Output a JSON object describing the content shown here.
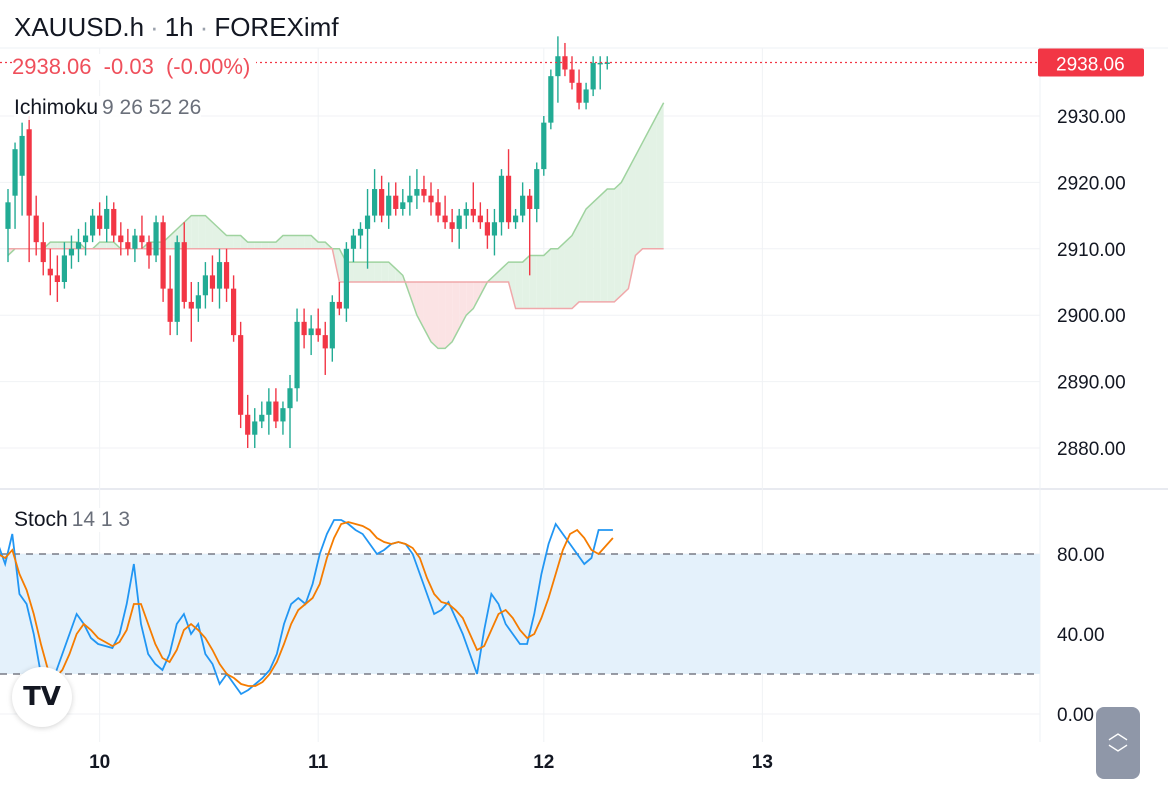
{
  "header": {
    "symbol": "XAUUSD.h",
    "interval": "1h",
    "broker": "FOREXimf",
    "last_price": "2938.06",
    "change": "-0.03",
    "change_pct": "(-0.00%)"
  },
  "ichimoku": {
    "label": "Ichimoku",
    "params": "9 26 52 26"
  },
  "stoch": {
    "label": "Stoch",
    "params": "14 1 3"
  },
  "colors": {
    "up": "#22ab94",
    "down": "#f23645",
    "price_line": "#f23645",
    "k_line": "#2196f3",
    "d_line": "#f57c00",
    "cloud_bull": "#e3f2e5",
    "cloud_bear": "#fbe3e4",
    "span_a": "#9fd39f",
    "span_b": "#f0a8aa",
    "band_fill": "#e4f1fb"
  },
  "icons": {
    "logo": "tradingview-logo-icon",
    "scroll": "chevron-up-down-icon"
  },
  "chart_data": [
    {
      "type": "candlestick",
      "title": "XAUUSD.h · 1h · FOREXimf",
      "ylim": [
        2874,
        2944
      ],
      "y_ticks": [
        "2930.00",
        "2920.00",
        "2910.00",
        "2900.00",
        "2890.00",
        "2880.00"
      ],
      "y_tick_values": [
        2930,
        2920,
        2910,
        2900,
        2890,
        2880
      ],
      "x_tick_labels": [
        "10",
        "11",
        "12",
        "13"
      ],
      "x_tick_index": [
        13,
        44,
        76,
        107
      ],
      "last_price_label": "2938.06",
      "last_price": 2938.06,
      "candles": [
        [
          2913,
          2919,
          2908,
          2917
        ],
        [
          2918,
          2926,
          2913,
          2925
        ],
        [
          2921,
          2929,
          2915,
          2927
        ],
        [
          2928,
          2930,
          2908,
          2915
        ],
        [
          2915,
          2918,
          2909,
          2911
        ],
        [
          2911,
          2914,
          2906,
          2908
        ],
        [
          2907,
          2910,
          2903,
          2906
        ],
        [
          2906,
          2909,
          2902,
          2905
        ],
        [
          2905,
          2911,
          2904,
          2909
        ],
        [
          2909,
          2912,
          2907,
          2910
        ],
        [
          2910,
          2913,
          2908,
          2911
        ],
        [
          2911,
          2914,
          2909,
          2912
        ],
        [
          2912,
          2916,
          2911,
          2915
        ],
        [
          2915,
          2917,
          2912,
          2913
        ],
        [
          2913,
          2918,
          2911,
          2916
        ],
        [
          2916,
          2917,
          2911,
          2912
        ],
        [
          2912,
          2914,
          2909,
          2911
        ],
        [
          2911,
          2913,
          2909,
          2910
        ],
        [
          2910,
          2913,
          2908,
          2912
        ],
        [
          2912,
          2915,
          2910,
          2911
        ],
        [
          2911,
          2912,
          2907,
          2909
        ],
        [
          2909,
          2915,
          2908,
          2914
        ],
        [
          2914,
          2915,
          2902,
          2904
        ],
        [
          2904,
          2909,
          2897,
          2899
        ],
        [
          2899,
          2912,
          2897,
          2911
        ],
        [
          2911,
          2914,
          2901,
          2902
        ],
        [
          2902,
          2905,
          2896,
          2901
        ],
        [
          2901,
          2905,
          2899,
          2903
        ],
        [
          2903,
          2908,
          2901,
          2906
        ],
        [
          2906,
          2909,
          2902,
          2904
        ],
        [
          2904,
          2910,
          2901,
          2908
        ],
        [
          2908,
          2910,
          2902,
          2904
        ],
        [
          2904,
          2906,
          2896,
          2897
        ],
        [
          2897,
          2899,
          2883,
          2885
        ],
        [
          2885,
          2888,
          2880,
          2882
        ],
        [
          2882,
          2886,
          2880,
          2884
        ],
        [
          2884,
          2887,
          2883,
          2885
        ],
        [
          2885,
          2889,
          2882,
          2887
        ],
        [
          2887,
          2889,
          2883,
          2884
        ],
        [
          2884,
          2887,
          2882,
          2886
        ],
        [
          2886,
          2891,
          2880,
          2889
        ],
        [
          2889,
          2901,
          2887,
          2899
        ],
        [
          2899,
          2901,
          2895,
          2897
        ],
        [
          2897,
          2900,
          2894,
          2898
        ],
        [
          2898,
          2901,
          2896,
          2897
        ],
        [
          2897,
          2899,
          2891,
          2895
        ],
        [
          2895,
          2903,
          2893,
          2902
        ],
        [
          2902,
          2905,
          2900,
          2901
        ],
        [
          2901,
          2911,
          2899,
          2910
        ],
        [
          2910,
          2913,
          2908,
          2912
        ],
        [
          2912,
          2914,
          2910,
          2913
        ],
        [
          2913,
          2919,
          2907,
          2915
        ],
        [
          2915,
          2922,
          2914,
          2919
        ],
        [
          2919,
          2921,
          2914,
          2915
        ],
        [
          2915,
          2920,
          2913,
          2918
        ],
        [
          2918,
          2920,
          2915,
          2916
        ],
        [
          2916,
          2919,
          2915,
          2917
        ],
        [
          2917,
          2921,
          2915,
          2918
        ],
        [
          2918,
          2922,
          2916,
          2919
        ],
        [
          2919,
          2921,
          2917,
          2918
        ],
        [
          2918,
          2920,
          2915,
          2917
        ],
        [
          2917,
          2919,
          2914,
          2915
        ],
        [
          2915,
          2918,
          2913,
          2914
        ],
        [
          2914,
          2916,
          2911,
          2913
        ],
        [
          2913,
          2916,
          2910,
          2915
        ],
        [
          2915,
          2917,
          2913,
          2916
        ],
        [
          2916,
          2920,
          2914,
          2915
        ],
        [
          2915,
          2917,
          2913,
          2914
        ],
        [
          2914,
          2916,
          2910,
          2912
        ],
        [
          2912,
          2916,
          2909,
          2914
        ],
        [
          2914,
          2922,
          2912,
          2921
        ],
        [
          2921,
          2925,
          2913,
          2914
        ],
        [
          2914,
          2916,
          2913,
          2915
        ],
        [
          2915,
          2920,
          2914,
          2918
        ],
        [
          2918,
          2919,
          2906,
          2916
        ],
        [
          2916,
          2923,
          2914,
          2922
        ],
        [
          2922,
          2930,
          2921,
          2929
        ],
        [
          2929,
          2937,
          2928,
          2936
        ],
        [
          2936,
          2942,
          2932,
          2939
        ],
        [
          2939,
          2941,
          2936,
          2937
        ],
        [
          2937,
          2939,
          2934,
          2935
        ],
        [
          2935,
          2937,
          2931,
          2932
        ],
        [
          2932,
          2935,
          2931,
          2934
        ],
        [
          2934,
          2939,
          2933,
          2938
        ],
        [
          2938,
          2939,
          2934,
          2938
        ],
        [
          2938.06,
          2939,
          2937,
          2938.06
        ]
      ],
      "ichimoku_span_a": [
        2909,
        2910,
        2910,
        2910,
        2910,
        2910,
        2911,
        2911,
        2911,
        2911,
        2911,
        2910,
        2910,
        2911,
        2911,
        2911,
        2910,
        2910,
        2910,
        2910,
        2911,
        2911,
        2911,
        2912,
        2913,
        2914,
        2915,
        2915,
        2915,
        2914,
        2913,
        2912,
        2912,
        2912,
        2911,
        2911,
        2911,
        2911,
        2911,
        2912,
        2912,
        2912,
        2912,
        2912,
        2911,
        2911,
        2910,
        2910,
        2908,
        2908,
        2908,
        2908,
        2908,
        2908,
        2908,
        2907,
        2906,
        2903,
        2900,
        2898,
        2896,
        2895,
        2895,
        2896,
        2898,
        2900,
        2901,
        2903,
        2905,
        2906,
        2907,
        2908,
        2908,
        2908,
        2909,
        2909,
        2909,
        2910,
        2910,
        2911,
        2912,
        2914,
        2916,
        2917,
        2918,
        2919,
        2919,
        2920,
        2922,
        2924,
        2926,
        2928,
        2930,
        2932
      ],
      "ichimoku_span_b": [
        2910,
        2910,
        2910,
        2910,
        2910,
        2910,
        2910,
        2910,
        2910,
        2910,
        2910,
        2910,
        2910,
        2910,
        2910,
        2910,
        2910,
        2910,
        2910,
        2910,
        2910,
        2910,
        2910,
        2910,
        2910,
        2910,
        2910,
        2910,
        2910,
        2910,
        2910,
        2910,
        2910,
        2910,
        2910,
        2910,
        2910,
        2910,
        2910,
        2910,
        2910,
        2910,
        2910,
        2910,
        2910,
        2910,
        2910,
        2905,
        2905,
        2905,
        2905,
        2905,
        2905,
        2905,
        2905,
        2905,
        2905,
        2905,
        2905,
        2905,
        2905,
        2905,
        2905,
        2905,
        2905,
        2905,
        2905,
        2905,
        2905,
        2905,
        2905,
        2905,
        2901,
        2901,
        2901,
        2901,
        2901,
        2901,
        2901,
        2901,
        2901,
        2902,
        2902,
        2902,
        2902,
        2902,
        2902,
        2903,
        2904,
        2909,
        2910,
        2910,
        2910,
        2910,
        2910
      ],
      "cloud_start_index": 0
    },
    {
      "type": "line",
      "title": "Stoch 14 1 3",
      "ylim": [
        0,
        100
      ],
      "y_ticks": [
        "80.00",
        "40.00",
        "0.00"
      ],
      "y_tick_values": [
        80,
        40,
        0
      ],
      "bands": [
        20,
        80
      ],
      "series": [
        {
          "name": "K",
          "values": [
            85,
            75,
            90,
            60,
            55,
            40,
            20,
            15,
            20,
            30,
            40,
            50,
            45,
            38,
            35,
            34,
            33,
            40,
            55,
            75,
            45,
            30,
            25,
            22,
            30,
            45,
            50,
            40,
            45,
            30,
            25,
            15,
            20,
            15,
            10,
            12,
            15,
            18,
            22,
            30,
            45,
            55,
            58,
            55,
            65,
            80,
            90,
            97,
            97,
            95,
            92,
            90,
            85,
            80,
            82,
            85,
            86,
            85,
            80,
            70,
            60,
            50,
            52,
            56,
            48,
            40,
            30,
            20,
            42,
            60,
            55,
            45,
            40,
            35,
            35,
            50,
            70,
            85,
            95,
            90,
            85,
            80,
            75,
            78,
            92,
            92,
            92
          ]
        },
        {
          "name": "D",
          "values": [
            80,
            78,
            82,
            70,
            62,
            50,
            35,
            22,
            18,
            22,
            30,
            40,
            45,
            42,
            38,
            36,
            34,
            36,
            42,
            55,
            55,
            45,
            35,
            28,
            26,
            32,
            42,
            45,
            42,
            38,
            32,
            25,
            20,
            18,
            15,
            14,
            14,
            16,
            20,
            26,
            35,
            45,
            52,
            55,
            58,
            65,
            78,
            88,
            95,
            96,
            95,
            94,
            92,
            88,
            86,
            85,
            86,
            85,
            83,
            78,
            68,
            60,
            56,
            55,
            52,
            48,
            40,
            32,
            34,
            42,
            50,
            52,
            48,
            42,
            38,
            40,
            48,
            58,
            70,
            82,
            90,
            92,
            88,
            82,
            80,
            84,
            88
          ]
        }
      ]
    }
  ]
}
